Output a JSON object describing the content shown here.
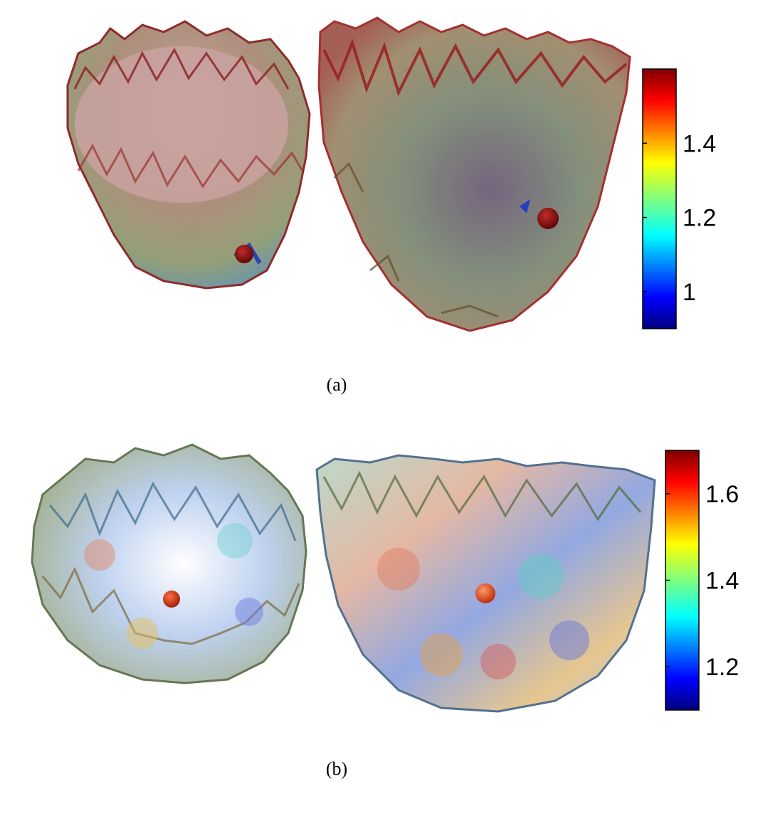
{
  "panels": [
    {
      "id": "a",
      "caption": "(a)",
      "colorbar": {
        "colormap": "jet",
        "ticks": [
          "1.4",
          "1.2",
          "1"
        ],
        "tick_values": [
          1.4,
          1.2,
          1.0
        ],
        "range": [
          0.9,
          1.6
        ]
      }
    },
    {
      "id": "b",
      "caption": "(b)",
      "colorbar": {
        "colormap": "jet",
        "ticks": [
          "1.6",
          "1.4",
          "1.2"
        ],
        "tick_values": [
          1.6,
          1.4,
          1.2
        ],
        "range": [
          1.1,
          1.7
        ]
      }
    }
  ],
  "colors": {
    "marker_a": "#8b0b0b",
    "marker_b": "#e0431a",
    "surface_a": "#8a7a6a"
  }
}
